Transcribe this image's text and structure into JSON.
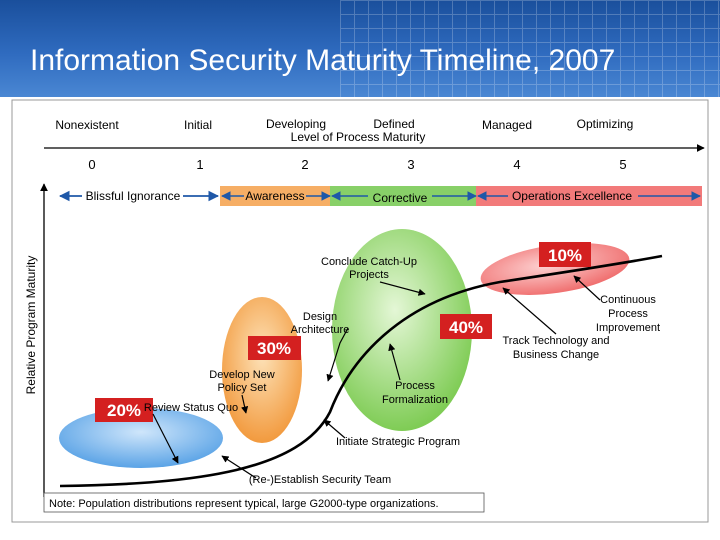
{
  "header": {
    "title": "Information Security Maturity Timeline, 2007"
  },
  "colors": {
    "header_blue": "#1f58a8",
    "awareness": "#f5a04a",
    "corrective": "#88d068",
    "operations": "#f27a7a",
    "ignorance": "#6fb1ea",
    "callout_red": "#d42020"
  },
  "levels": [
    {
      "name": "Nonexistent",
      "number": "0"
    },
    {
      "name": "Initial",
      "number": "1"
    },
    {
      "name": "Developing",
      "number": "2"
    },
    {
      "name": "Defined",
      "number": "3"
    },
    {
      "name": "Managed",
      "number": "4"
    },
    {
      "name": "Optimizing",
      "number": "5"
    }
  ],
  "axis": {
    "x_label": "Level of Process Maturity",
    "y_label": "Relative Program Maturity"
  },
  "phases": {
    "ignorance": "Blissful Ignorance",
    "awareness": "Awareness",
    "corrective": "Corrective",
    "operations": "Operations Excellence"
  },
  "percentages": {
    "ignorance": "20%",
    "awareness": "30%",
    "corrective": "40%",
    "operations": "10%"
  },
  "annotations": {
    "reestablish": "(Re-)Establish Security Team",
    "review_status": "Review Status Quo",
    "develop_policy": [
      "Develop New",
      "Policy Set"
    ],
    "design_architecture": [
      "Design",
      "Architecture"
    ],
    "conclude_catchup": [
      "Conclude Catch-Up",
      "Projects"
    ],
    "process_formalization": [
      "Process",
      "Formalization"
    ],
    "initiate_strategic": "Initiate Strategic Program",
    "continuous_improvement": [
      "Continuous",
      "Process",
      "Improvement"
    ],
    "track_technology": [
      "Track Technology and",
      "Business Change"
    ]
  },
  "note": "Note: Population distributions represent typical, large G2000-type organizations."
}
